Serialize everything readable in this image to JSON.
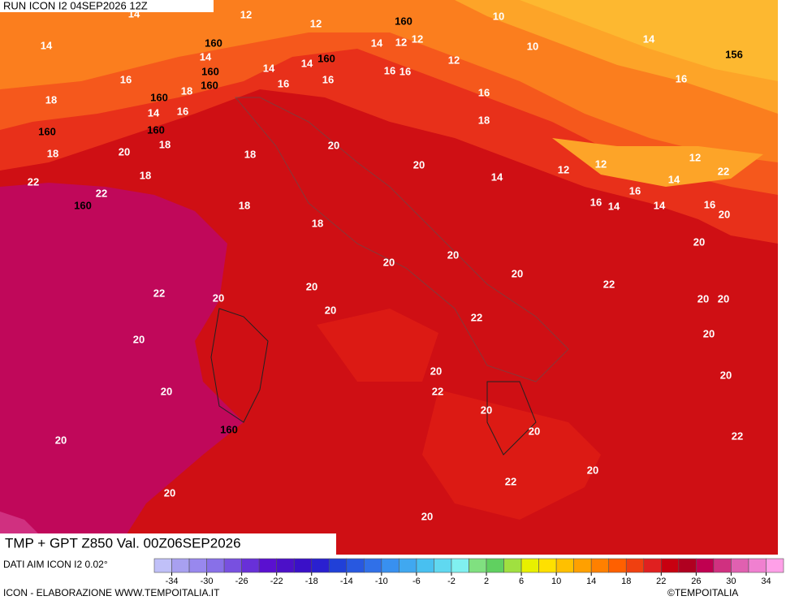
{
  "header": {
    "run": "RUN ICON I2 04SEP2026 12Z"
  },
  "map": {
    "temperature_labels": [
      14,
      12,
      12,
      10,
      14,
      14,
      14,
      12,
      12,
      10,
      14,
      16,
      14,
      14,
      12,
      16,
      18,
      16,
      16,
      16,
      16,
      18,
      16,
      14,
      16,
      18,
      18,
      20,
      18,
      20,
      18,
      20,
      18,
      14,
      12,
      12,
      12,
      14,
      22,
      22,
      22,
      18,
      16,
      14,
      16,
      14,
      16,
      20,
      18,
      20,
      20,
      20,
      20,
      20,
      22,
      22,
      20,
      20,
      20,
      20,
      22,
      20,
      20,
      20,
      20,
      22,
      20,
      20,
      20,
      22,
      20,
      20,
      22,
      20,
      20
    ],
    "geopotential_labels": [
      160,
      160,
      156,
      160,
      160,
      160,
      160,
      160,
      160,
      160,
      160
    ]
  },
  "footer": {
    "product": "TMP + GPT Z850 Val. 00Z06SEP2026",
    "source": "DATI AIM ICON I2 0.02°",
    "credit": "ICON - ELABORAZIONE WWW.TEMPOITALIA.IT",
    "copyright": "©TEMPOITALIA"
  },
  "legend": {
    "xlim": [
      -36,
      36
    ],
    "ticks": [
      -34,
      -30,
      -26,
      -22,
      -18,
      -14,
      -10,
      -6,
      -2,
      2,
      6,
      10,
      14,
      18,
      22,
      26,
      30,
      34
    ],
    "colors": [
      "#c0c0f8",
      "#a8a0f0",
      "#9888ee",
      "#8870e8",
      "#7850e0",
      "#6830d8",
      "#5a10d0",
      "#4c10c8",
      "#3a10c8",
      "#2a20d0",
      "#2040d8",
      "#2858e0",
      "#3070e8",
      "#3890f0",
      "#40a8f0",
      "#48c0f0",
      "#60d8f0",
      "#80f0f0",
      "#80e080",
      "#60d060",
      "#a0e040",
      "#e8f000",
      "#ffe000",
      "#ffc000",
      "#ffa000",
      "#ff8000",
      "#ff6000",
      "#f04010",
      "#e02020",
      "#c80010",
      "#b00020",
      "#c00050",
      "#d03080",
      "#e060b0",
      "#f080d0",
      "#ffa0e8"
    ]
  }
}
